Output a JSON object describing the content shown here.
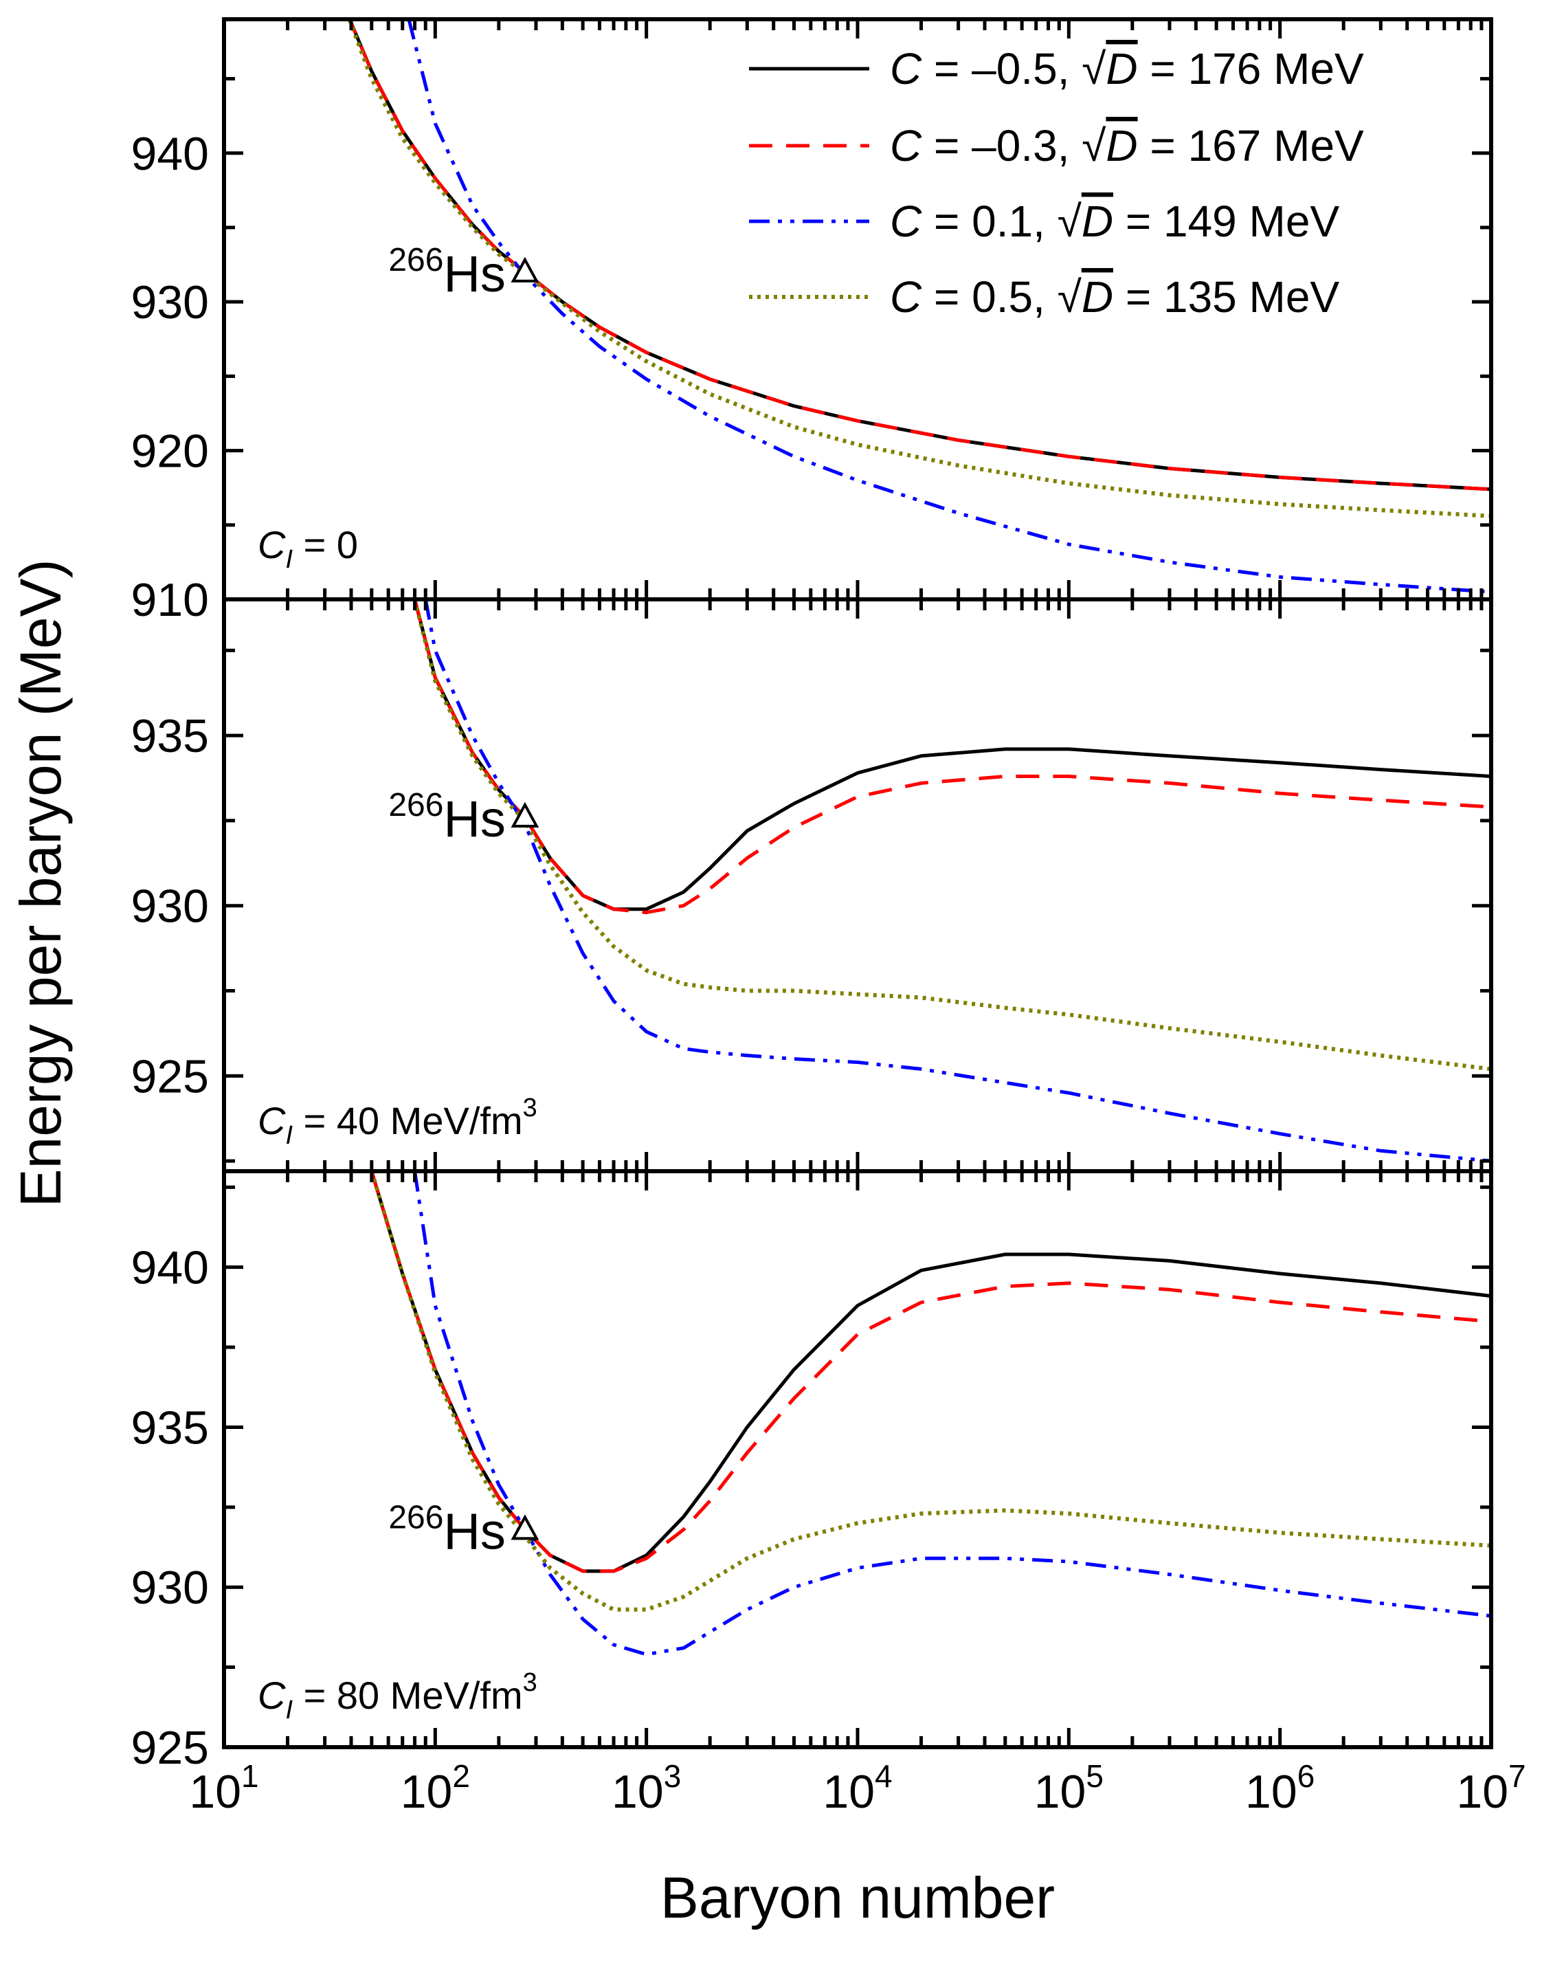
{
  "chart_data": {
    "type": "line",
    "title": "",
    "xlabel": "Baryon number",
    "ylabel": "Energy per baryon (MeV)",
    "x_scale": "log",
    "xlim": [
      10,
      10000000
    ],
    "x_tick_labels": [
      {
        "base": "10",
        "exp": "1"
      },
      {
        "base": "10",
        "exp": "2"
      },
      {
        "base": "10",
        "exp": "3"
      },
      {
        "base": "10",
        "exp": "4"
      },
      {
        "base": "10",
        "exp": "5"
      },
      {
        "base": "10",
        "exp": "6"
      },
      {
        "base": "10",
        "exp": "7"
      }
    ],
    "legend": {
      "placement": "top-right",
      "entries": [
        {
          "series": 0,
          "c_part": "C = –0.5, ",
          "radical": "√",
          "d_symbol": "D",
          "d_part": " = 176 MeV"
        },
        {
          "series": 1,
          "c_part": "C = –0.3, ",
          "radical": "√",
          "d_symbol": "D",
          "d_part": " = 167 MeV"
        },
        {
          "series": 2,
          "c_part": "C = 0.1, ",
          "radical": "√",
          "d_symbol": "D",
          "d_part": " = 149 MeV"
        },
        {
          "series": 3,
          "c_part": "C = 0.5, ",
          "radical": "√",
          "d_symbol": "D",
          "d_part": " = 135 MeV"
        }
      ]
    },
    "series_styles": [
      {
        "name": "C = -0.5, sqrt(D) = 176 MeV",
        "color": "#000000",
        "dash": "solid"
      },
      {
        "name": "C = -0.3, sqrt(D) = 167 MeV",
        "color": "#ff0000",
        "dash": "dash"
      },
      {
        "name": "C = 0.1, sqrt(D) = 149 MeV",
        "color": "#0000ff",
        "dash": "dash-dot-dot"
      },
      {
        "name": "C = 0.5, sqrt(D) = 135 MeV",
        "color": "#808000",
        "dash": "dot"
      }
    ],
    "marker_label": {
      "superscript": "266",
      "symbol": "Hs"
    },
    "panels": [
      {
        "id": "top",
        "label": {
          "var": "C",
          "sub": "I",
          "text": " = 0",
          "sup": ""
        },
        "ylim": [
          910,
          949
        ],
        "yticks": [
          910,
          920,
          930,
          940
        ],
        "marker": {
          "x": 266,
          "y": 932.0
        },
        "series": [
          {
            "x": [
              38,
              50,
              70,
              100,
              150,
              200,
              266,
              400,
              600,
              1000,
              2000,
              5000,
              10000,
              30000,
              100000,
              300000,
              1000000,
              3000000,
              10000000
            ],
            "y": [
              949.5,
              945.5,
              941.5,
              938.3,
              935.2,
              933.4,
              932.0,
              930.0,
              928.3,
              926.6,
              924.8,
              923.0,
              922.0,
              920.7,
              919.6,
              918.8,
              918.2,
              917.8,
              917.4
            ]
          },
          {
            "x": [
              38,
              50,
              70,
              100,
              150,
              200,
              266,
              400,
              600,
              1000,
              2000,
              5000,
              10000,
              30000,
              100000,
              300000,
              1000000,
              3000000,
              10000000
            ],
            "y": [
              949.5,
              945.5,
              941.5,
              938.3,
              935.2,
              933.4,
              932.0,
              930.0,
              928.3,
              926.6,
              924.8,
              923.0,
              922.0,
              920.7,
              919.6,
              918.8,
              918.2,
              917.8,
              917.4
            ]
          },
          {
            "x": [
              75,
              100,
              150,
              200,
              266,
              400,
              600,
              1000,
              2000,
              5000,
              10000,
              30000,
              100000,
              300000,
              1000000,
              3000000,
              10000000
            ],
            "y": [
              949.0,
              942.0,
              936.5,
              934.0,
              931.8,
              929.2,
              927.0,
              924.8,
              922.3,
              919.6,
              918.0,
              915.8,
              913.7,
              912.5,
              911.5,
              911.0,
              910.5
            ]
          },
          {
            "x": [
              38,
              50,
              70,
              100,
              150,
              200,
              266,
              400,
              600,
              1000,
              2000,
              5000,
              10000,
              30000,
              100000,
              300000,
              1000000,
              3000000,
              10000000
            ],
            "y": [
              949.5,
              945.0,
              941.0,
              938.0,
              935.0,
              933.2,
              931.9,
              929.9,
              928.0,
              926.0,
              923.8,
              921.6,
              920.4,
              919.0,
              917.8,
              917.0,
              916.4,
              916.0,
              915.6
            ]
          }
        ]
      },
      {
        "id": "middle",
        "label": {
          "var": "C",
          "sub": "I",
          "text": " = 40 MeV/fm",
          "sup": "3"
        },
        "ylim": [
          922.2,
          939.0
        ],
        "yticks": [
          925,
          930,
          935
        ],
        "marker": {
          "x": 266,
          "y": 932.6
        },
        "series": [
          {
            "x": [
              80,
              100,
              150,
              200,
              266,
              350,
              500,
              700,
              1000,
              1500,
              2000,
              3000,
              5000,
              10000,
              20000,
              50000,
              100000,
              300000,
              1000000,
              3000000,
              10000000
            ],
            "y": [
              939.0,
              936.7,
              934.5,
              933.4,
              932.6,
              931.4,
              930.3,
              929.9,
              929.9,
              930.4,
              931.1,
              932.2,
              933.0,
              933.9,
              934.4,
              934.6,
              934.6,
              934.4,
              934.2,
              934.0,
              933.8
            ]
          },
          {
            "x": [
              80,
              100,
              150,
              200,
              266,
              350,
              500,
              700,
              1000,
              1500,
              2000,
              3000,
              5000,
              10000,
              20000,
              50000,
              100000,
              300000,
              1000000,
              3000000,
              10000000
            ],
            "y": [
              939.0,
              936.7,
              934.5,
              933.4,
              932.6,
              931.4,
              930.3,
              929.9,
              929.8,
              930.0,
              930.5,
              931.4,
              932.3,
              933.2,
              933.6,
              933.8,
              933.8,
              933.6,
              933.3,
              933.1,
              932.9
            ]
          },
          {
            "x": [
              90,
              100,
              150,
              200,
              266,
              350,
              500,
              700,
              1000,
              1500,
              2000,
              3000,
              5000,
              10000,
              20000,
              50000,
              100000,
              300000,
              1000000,
              3000000,
              10000000
            ],
            "y": [
              939.0,
              937.5,
              935.0,
              933.6,
              932.4,
              930.6,
              928.6,
              927.2,
              926.3,
              925.8,
              925.7,
              925.6,
              925.5,
              925.4,
              925.2,
              924.8,
              924.5,
              923.9,
              923.3,
              922.8,
              922.5
            ]
          },
          {
            "x": [
              80,
              100,
              150,
              200,
              266,
              350,
              500,
              700,
              1000,
              1500,
              2000,
              3000,
              5000,
              10000,
              20000,
              50000,
              100000,
              300000,
              1000000,
              3000000,
              10000000
            ],
            "y": [
              939.0,
              936.6,
              934.4,
              933.3,
              932.5,
              931.2,
              929.8,
              928.8,
              928.1,
              927.7,
              927.6,
              927.5,
              927.5,
              927.4,
              927.3,
              927.0,
              926.8,
              926.4,
              926.0,
              925.6,
              925.2
            ]
          }
        ]
      },
      {
        "id": "bottom",
        "label": {
          "var": "C",
          "sub": "I",
          "text": " = 80 MeV/fm",
          "sup": "3"
        },
        "ylim": [
          925,
          943
        ],
        "yticks": [
          925,
          930,
          935,
          940
        ],
        "marker": {
          "x": 266,
          "y": 931.8
        },
        "series": [
          {
            "x": [
              50,
              70,
              100,
              150,
              200,
              266,
              350,
              500,
              700,
              1000,
              1500,
              2000,
              3000,
              5000,
              10000,
              20000,
              50000,
              100000,
              300000,
              1000000,
              3000000,
              10000000
            ],
            "y": [
              943.0,
              939.8,
              936.8,
              934.2,
              932.8,
              931.8,
              931.0,
              930.5,
              930.5,
              931.0,
              932.2,
              933.3,
              935.0,
              936.8,
              938.8,
              939.9,
              940.4,
              940.4,
              940.2,
              939.8,
              939.5,
              939.1
            ]
          },
          {
            "x": [
              50,
              70,
              100,
              150,
              200,
              266,
              350,
              500,
              700,
              1000,
              1500,
              2000,
              3000,
              5000,
              10000,
              20000,
              50000,
              100000,
              300000,
              1000000,
              3000000,
              10000000
            ],
            "y": [
              943.0,
              939.8,
              936.8,
              934.2,
              932.8,
              931.8,
              931.0,
              930.5,
              930.5,
              930.9,
              931.8,
              932.7,
              934.2,
              935.9,
              937.9,
              938.9,
              939.4,
              939.5,
              939.3,
              938.9,
              938.6,
              938.3
            ]
          },
          {
            "x": [
              80,
              100,
              150,
              200,
              266,
              350,
              500,
              700,
              1000,
              1500,
              2000,
              3000,
              5000,
              10000,
              20000,
              50000,
              100000,
              300000,
              1000000,
              3000000,
              10000000
            ],
            "y": [
              943.0,
              938.8,
              935.2,
              933.2,
              931.8,
              930.4,
              929.0,
              928.2,
              927.9,
              928.1,
              928.6,
              929.3,
              930.0,
              930.6,
              930.9,
              930.9,
              930.8,
              930.4,
              929.9,
              929.5,
              929.1
            ]
          },
          {
            "x": [
              50,
              70,
              100,
              150,
              200,
              266,
              350,
              500,
              700,
              1000,
              1500,
              2000,
              3000,
              5000,
              10000,
              20000,
              50000,
              100000,
              300000,
              1000000,
              3000000,
              10000000
            ],
            "y": [
              943.0,
              939.8,
              936.7,
              934.0,
              932.6,
              931.6,
              930.6,
              929.8,
              929.3,
              929.3,
              929.7,
              930.2,
              930.9,
              931.5,
              932.0,
              932.3,
              932.4,
              932.3,
              932.0,
              931.7,
              931.5,
              931.3
            ]
          }
        ]
      }
    ]
  }
}
